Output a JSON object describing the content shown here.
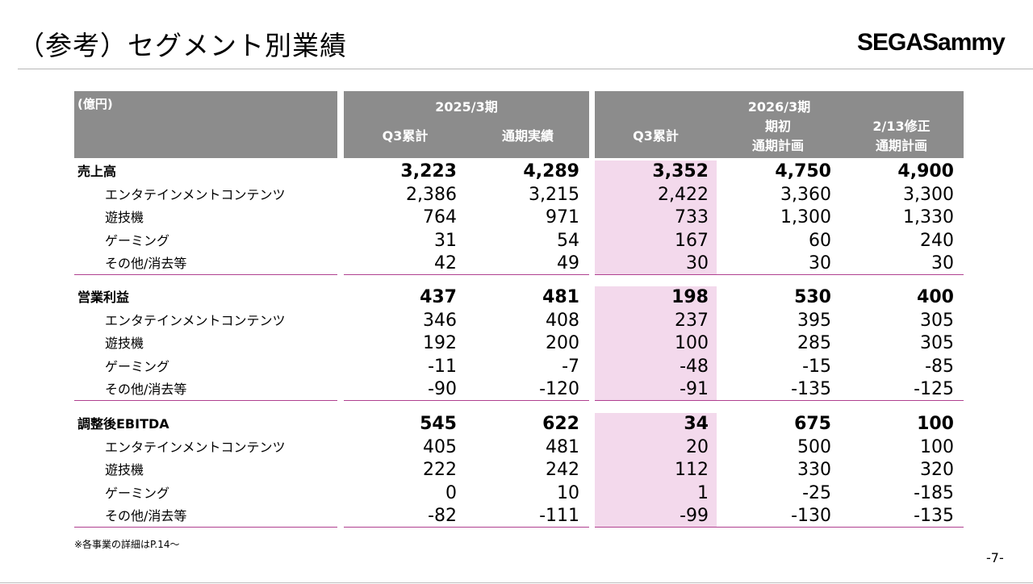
{
  "page": {
    "title": "（参考）セグメント別業績",
    "logo_text": "SEGASammy",
    "logo_color": "#000000",
    "footnote": "※各事業の詳細はP.14～",
    "page_number": "-7-"
  },
  "table": {
    "unit": "(億円)",
    "periods": [
      "2025/3期",
      "2026/3期"
    ],
    "columns": [
      "Q3累計",
      "通期実績",
      "Q3累計",
      "期初\n通期計画",
      "2/13修正\n通期計画"
    ],
    "highlight_color": "#f3d9ec",
    "header_color": "#8c8c8c",
    "rule_color": "#b04090",
    "sections": [
      {
        "rows": [
          {
            "label": "売上高",
            "main": true,
            "values": [
              "3,223",
              "4,289",
              "3,352",
              "4,750",
              "4,900"
            ]
          },
          {
            "label": "エンタテインメントコンテンツ",
            "main": false,
            "values": [
              "2,386",
              "3,215",
              "2,422",
              "3,360",
              "3,300"
            ]
          },
          {
            "label": "遊技機",
            "main": false,
            "values": [
              "764",
              "971",
              "733",
              "1,300",
              "1,330"
            ]
          },
          {
            "label": "ゲーミング",
            "main": false,
            "values": [
              "31",
              "54",
              "167",
              "60",
              "240"
            ]
          },
          {
            "label": "その他/消去等",
            "main": false,
            "values": [
              "42",
              "49",
              "30",
              "30",
              "30"
            ]
          }
        ]
      },
      {
        "rows": [
          {
            "label": "営業利益",
            "main": true,
            "values": [
              "437",
              "481",
              "198",
              "530",
              "400"
            ]
          },
          {
            "label": "エンタテインメントコンテンツ",
            "main": false,
            "values": [
              "346",
              "408",
              "237",
              "395",
              "305"
            ]
          },
          {
            "label": "遊技機",
            "main": false,
            "values": [
              "192",
              "200",
              "100",
              "285",
              "305"
            ]
          },
          {
            "label": "ゲーミング",
            "main": false,
            "values": [
              "-11",
              "-7",
              "-48",
              "-15",
              "-85"
            ]
          },
          {
            "label": "その他/消去等",
            "main": false,
            "values": [
              "-90",
              "-120",
              "-91",
              "-135",
              "-125"
            ]
          }
        ]
      },
      {
        "rows": [
          {
            "label": "調整後EBITDA",
            "main": true,
            "values": [
              "545",
              "622",
              "34",
              "675",
              "100"
            ]
          },
          {
            "label": "エンタテインメントコンテンツ",
            "main": false,
            "values": [
              "405",
              "481",
              "20",
              "500",
              "100"
            ]
          },
          {
            "label": "遊技機",
            "main": false,
            "values": [
              "222",
              "242",
              "112",
              "330",
              "320"
            ]
          },
          {
            "label": "ゲーミング",
            "main": false,
            "values": [
              "0",
              "10",
              "1",
              "-25",
              "-185"
            ]
          },
          {
            "label": "その他/消去等",
            "main": false,
            "values": [
              "-82",
              "-111",
              "-99",
              "-130",
              "-135"
            ]
          }
        ]
      }
    ]
  }
}
